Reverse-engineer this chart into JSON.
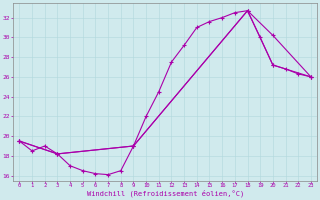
{
  "bg_color": "#d0eaed",
  "line_color": "#aa00aa",
  "xlabel": "Windchill (Refroidissement éolien,°C)",
  "ylim": [
    15.5,
    33.5
  ],
  "xlim": [
    -0.5,
    23.5
  ],
  "yticks": [
    16,
    18,
    20,
    22,
    24,
    26,
    28,
    30,
    32
  ],
  "xtick_labels": [
    "0",
    "1",
    "2",
    "3",
    "4",
    "5",
    "6",
    "7",
    "8",
    "9",
    "10",
    "11",
    "12",
    "13",
    "14",
    "15",
    "16",
    "17",
    "18",
    "19",
    "20",
    "21",
    "22",
    "23"
  ],
  "line1_x": [
    0,
    1,
    2,
    3,
    4,
    5,
    6,
    7,
    8,
    9,
    10,
    11,
    12,
    13,
    14,
    15,
    16,
    17,
    18,
    19,
    20,
    21,
    22,
    23
  ],
  "line1_y": [
    19.5,
    18.5,
    19.0,
    18.2,
    17.0,
    16.5,
    16.2,
    16.1,
    16.5,
    19.0,
    22.0,
    24.5,
    27.5,
    29.2,
    31.0,
    31.6,
    32.0,
    32.5,
    32.7,
    30.0,
    27.2,
    26.8,
    26.3,
    26.0
  ],
  "line2_x": [
    0,
    3,
    9,
    18,
    20,
    23
  ],
  "line2_y": [
    19.5,
    18.2,
    19.0,
    32.7,
    30.2,
    26.0
  ],
  "line3_x": [
    0,
    3,
    9,
    18,
    20,
    23
  ],
  "line3_y": [
    19.5,
    18.2,
    19.0,
    32.7,
    27.2,
    26.0
  ]
}
